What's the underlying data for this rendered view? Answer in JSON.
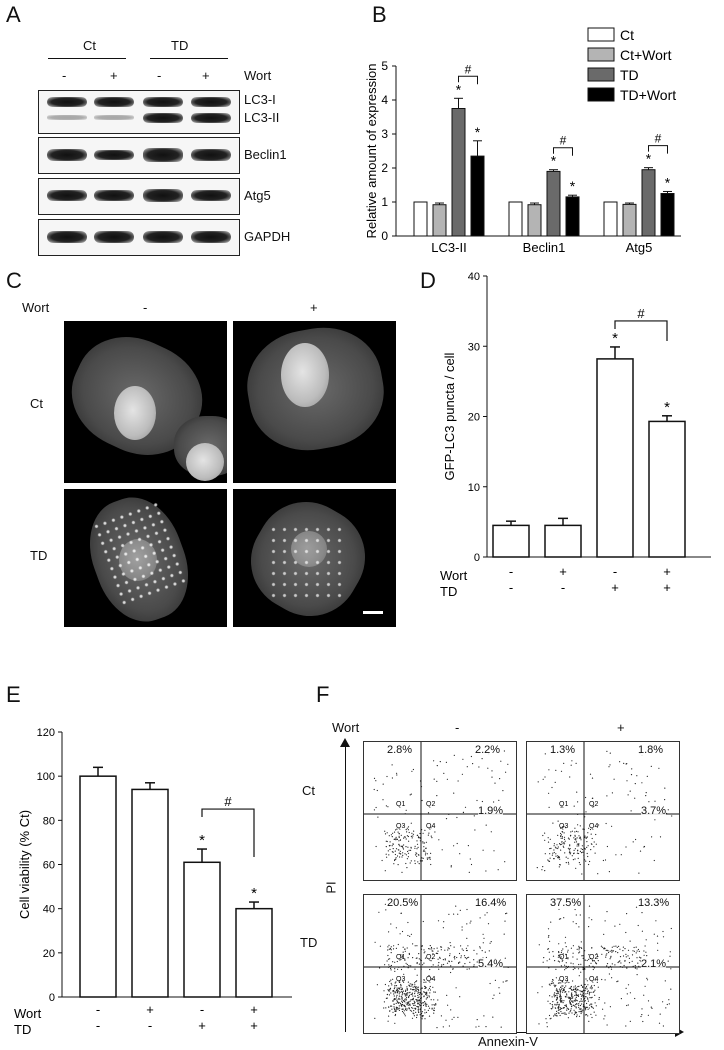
{
  "panels": {
    "A": "A",
    "B": "B",
    "C": "C",
    "D": "D",
    "E": "E",
    "F": "F"
  },
  "panelA": {
    "groups": [
      "Ct",
      "TD"
    ],
    "wort_label": "Wort",
    "lane_signs": [
      "-",
      "+",
      "-",
      "+"
    ],
    "blots": [
      "LC3-I",
      "LC3-II",
      "Beclin1",
      "Atg5",
      "GAPDH"
    ]
  },
  "panelC": {
    "wort_label": "Wort",
    "col_signs": [
      "-",
      "+"
    ],
    "rows": [
      "Ct",
      "TD"
    ]
  },
  "panelF": {
    "wort_label": "Wort",
    "col_signs": [
      "-",
      "+"
    ],
    "rows": [
      "Ct",
      "TD"
    ],
    "y_axis": "PI",
    "x_axis": "Annexin-V",
    "quadrant_names": [
      "Q1",
      "Q2",
      "Q3",
      "Q4"
    ],
    "plots": [
      {
        "q1": "2.8%",
        "q2": "2.2%",
        "q4": "1.9%"
      },
      {
        "q1": "1.3%",
        "q2": "1.8%",
        "q4": "3.7%"
      },
      {
        "q1": "20.5%",
        "q2": "16.4%",
        "q4": "5.4%"
      },
      {
        "q1": "37.5%",
        "q2": "13.3%",
        "q4": "2.1%"
      }
    ]
  },
  "chart_data": [
    {
      "id": "B",
      "type": "bar",
      "ylabel": "Relative amount of expression",
      "ylim": [
        0,
        5
      ],
      "yticks": [
        "0",
        "1",
        "2",
        "3",
        "4",
        "5"
      ],
      "categories": [
        "LC3-II",
        "Beclin1",
        "Atg5"
      ],
      "series": [
        {
          "name": "Ct",
          "values": [
            1,
            1,
            1
          ],
          "errors": [
            0,
            0,
            0
          ],
          "color": "#ffffff"
        },
        {
          "name": "Ct+Wort",
          "values": [
            0.92,
            0.92,
            0.93
          ],
          "errors": [
            0.05,
            0.05,
            0.04
          ],
          "color": "#b4b4b4"
        },
        {
          "name": "TD",
          "values": [
            3.75,
            1.9,
            1.95
          ],
          "errors": [
            0.3,
            0.05,
            0.06
          ],
          "color": "#6a6a6a"
        },
        {
          "name": "TD+Wort",
          "values": [
            2.35,
            1.15,
            1.25
          ],
          "errors": [
            0.45,
            0.05,
            0.06
          ],
          "color": "#000000"
        }
      ],
      "star": "*",
      "hash": "#",
      "legend": "top-right"
    },
    {
      "id": "D",
      "type": "bar",
      "ylabel": "GFP-LC3 puncta / cell",
      "ylim": [
        0,
        40
      ],
      "yticks": [
        "0",
        "10",
        "20",
        "30",
        "40"
      ],
      "values": [
        4.5,
        4.5,
        28.2,
        19.3
      ],
      "errors": [
        0.6,
        1.0,
        1.7,
        0.8
      ],
      "wort_label": "Wort",
      "td_label": "TD",
      "wort_signs": [
        "-",
        "+",
        "-",
        "+"
      ],
      "td_signs": [
        "-",
        "-",
        "+",
        "+"
      ],
      "star": "*",
      "hash": "#"
    },
    {
      "id": "E",
      "type": "bar",
      "ylabel": "Cell viability (% Ct)",
      "ylim": [
        0,
        120
      ],
      "yticks": [
        "0",
        "20",
        "40",
        "60",
        "80",
        "100",
        "120"
      ],
      "values": [
        100,
        94,
        61,
        40
      ],
      "errors": [
        4,
        3,
        6,
        3
      ],
      "wort_label": "Wort",
      "td_label": "TD",
      "wort_signs": [
        "-",
        "+",
        "-",
        "+"
      ],
      "td_signs": [
        "-",
        "-",
        "+",
        "+"
      ],
      "star": "*",
      "hash": "#"
    }
  ]
}
